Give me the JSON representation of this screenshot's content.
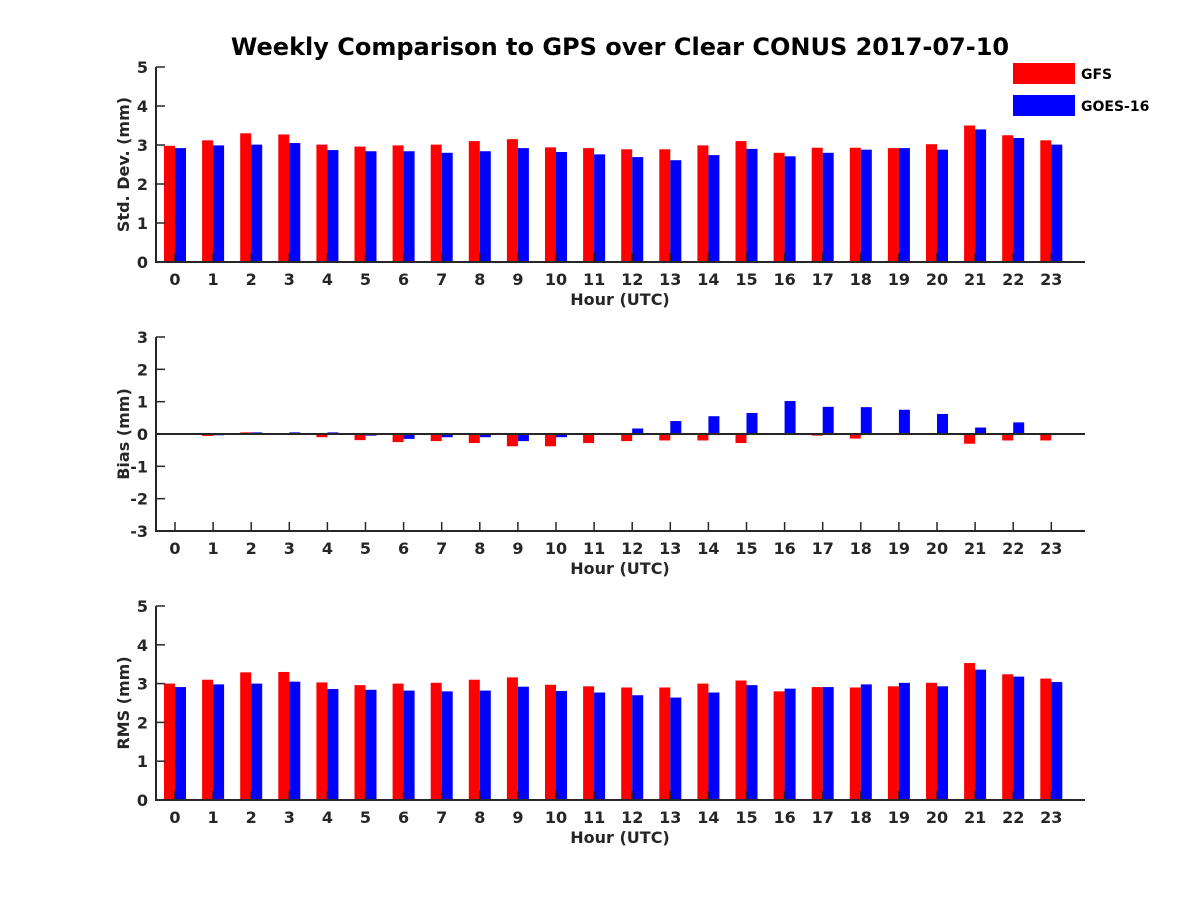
{
  "title": "Weekly Comparison to GPS over Clear CONUS 2017-07-10",
  "legend": {
    "placement": "top-right",
    "entries": [
      {
        "name": "GFS",
        "color": "#ff0000"
      },
      {
        "name": "GOES-16",
        "color": "#0000ff"
      }
    ]
  },
  "chart_data": [
    {
      "type": "bar",
      "xlabel": "Hour (UTC)",
      "ylabel": "Std. Dev. (mm)",
      "ylim": [
        0,
        5
      ],
      "yticks": [
        0,
        1,
        2,
        3,
        4,
        5
      ],
      "categories": [
        "0",
        "1",
        "2",
        "3",
        "4",
        "5",
        "6",
        "7",
        "8",
        "9",
        "10",
        "11",
        "12",
        "13",
        "14",
        "15",
        "16",
        "17",
        "18",
        "19",
        "20",
        "21",
        "22",
        "23"
      ],
      "series": [
        {
          "name": "GFS",
          "color": "#ff0000",
          "values": [
            2.98,
            3.12,
            3.3,
            3.27,
            3.01,
            2.96,
            2.99,
            3.01,
            3.1,
            3.15,
            2.94,
            2.92,
            2.89,
            2.89,
            2.99,
            3.1,
            2.8,
            2.93,
            2.93,
            2.92,
            3.02,
            3.5,
            3.25,
            3.12
          ]
        },
        {
          "name": "GOES-16",
          "color": "#0000ff",
          "values": [
            2.92,
            2.99,
            3.01,
            3.05,
            2.87,
            2.84,
            2.84,
            2.8,
            2.84,
            2.92,
            2.82,
            2.76,
            2.69,
            2.61,
            2.74,
            2.9,
            2.71,
            2.8,
            2.88,
            2.92,
            2.88,
            3.4,
            3.18,
            3.01
          ]
        }
      ]
    },
    {
      "type": "bar",
      "xlabel": "Hour (UTC)",
      "ylabel": "Bias (mm)",
      "ylim": [
        -3,
        3
      ],
      "yticks": [
        -3,
        -2,
        -1,
        0,
        1,
        2,
        3
      ],
      "categories": [
        "0",
        "1",
        "2",
        "3",
        "4",
        "5",
        "6",
        "7",
        "8",
        "9",
        "10",
        "11",
        "12",
        "13",
        "14",
        "15",
        "16",
        "17",
        "18",
        "19",
        "20",
        "21",
        "22",
        "23"
      ],
      "series": [
        {
          "name": "GFS",
          "color": "#ff0000",
          "values": [
            -0.02,
            -0.06,
            0.05,
            0.0,
            -0.1,
            -0.19,
            -0.25,
            -0.22,
            -0.28,
            -0.38,
            -0.38,
            -0.28,
            -0.22,
            -0.2,
            -0.2,
            -0.28,
            0.02,
            -0.05,
            -0.14,
            0.0,
            0.0,
            -0.3,
            -0.2,
            -0.2
          ]
        },
        {
          "name": "GOES-16",
          "color": "#0000ff",
          "values": [
            0.03,
            -0.04,
            0.05,
            0.05,
            0.05,
            -0.05,
            -0.15,
            -0.1,
            -0.1,
            -0.22,
            -0.1,
            0.0,
            0.17,
            0.4,
            0.55,
            0.65,
            1.02,
            0.84,
            0.83,
            0.75,
            0.62,
            0.2,
            0.36,
            0.0
          ]
        }
      ]
    },
    {
      "type": "bar",
      "xlabel": "Hour (UTC)",
      "ylabel": "RMS (mm)",
      "ylim": [
        0,
        5
      ],
      "yticks": [
        0,
        1,
        2,
        3,
        4,
        5
      ],
      "categories": [
        "0",
        "1",
        "2",
        "3",
        "4",
        "5",
        "6",
        "7",
        "8",
        "9",
        "10",
        "11",
        "12",
        "13",
        "14",
        "15",
        "16",
        "17",
        "18",
        "19",
        "20",
        "21",
        "22",
        "23"
      ],
      "series": [
        {
          "name": "GFS",
          "color": "#ff0000",
          "values": [
            3.0,
            3.1,
            3.29,
            3.3,
            3.03,
            2.96,
            3.0,
            3.02,
            3.1,
            3.16,
            2.97,
            2.93,
            2.9,
            2.9,
            3.0,
            3.08,
            2.8,
            2.91,
            2.9,
            2.93,
            3.02,
            3.53,
            3.24,
            3.13
          ]
        },
        {
          "name": "GOES-16",
          "color": "#0000ff",
          "values": [
            2.91,
            2.98,
            3.0,
            3.05,
            2.86,
            2.84,
            2.82,
            2.8,
            2.82,
            2.92,
            2.81,
            2.77,
            2.7,
            2.64,
            2.77,
            2.96,
            2.87,
            2.91,
            2.98,
            3.02,
            2.93,
            3.36,
            3.18,
            3.04
          ]
        }
      ]
    }
  ]
}
